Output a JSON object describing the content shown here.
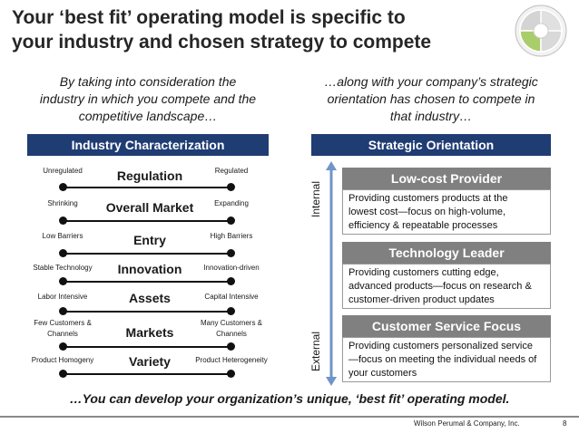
{
  "title": {
    "line1": "Your ‘best fit’ operating model is specific to",
    "line2": "your industry and chosen strategy to compete"
  },
  "intro_left": {
    "line1": "By taking into consideration the",
    "line2": "industry in which you compete and the",
    "line3": "competitive landscape…"
  },
  "intro_right": {
    "line1": "…along with your company’s strategic",
    "line2": "orientation has chosen to compete in",
    "line3": "that industry…"
  },
  "industry": {
    "header": "Industry Characterization",
    "rows": [
      {
        "name": "Regulation",
        "left": [
          "Unregulated"
        ],
        "right": [
          "Regulated"
        ]
      },
      {
        "name": "Overall Market",
        "left": [
          "Shrinking"
        ],
        "right": [
          "Expanding"
        ]
      },
      {
        "name": "Entry",
        "left": [
          "Low Barriers"
        ],
        "right": [
          "High Barriers"
        ]
      },
      {
        "name": "Innovation",
        "left": [
          "Stable Technology"
        ],
        "right": [
          "Innovation-driven"
        ]
      },
      {
        "name": "Assets",
        "left": [
          "Labor Intensive"
        ],
        "right": [
          "Capital Intensive"
        ]
      },
      {
        "name": "Markets",
        "left": [
          "Few Customers &",
          "Channels"
        ],
        "right": [
          "Many Customers &",
          "Channels"
        ]
      },
      {
        "name": "Variety",
        "left": [
          "Product Homogeny"
        ],
        "right": [
          "Product Heterogeneity"
        ]
      }
    ]
  },
  "strategic": {
    "header": "Strategic Orientation",
    "axis_top": "Internal",
    "axis_bottom": "External",
    "items": [
      {
        "title": "Low-cost Provider",
        "lines": [
          "Providing customers products at the",
          "lowest cost—focus on high-volume,",
          "efficiency & repeatable processes"
        ]
      },
      {
        "title": "Technology Leader",
        "lines": [
          "Providing customers cutting edge,",
          "advanced products—focus on research &",
          "customer-driven product updates"
        ]
      },
      {
        "title": "Customer Service Focus",
        "lines": [
          "Providing customers personalized service",
          "—focus on meeting the individual needs of",
          "your customers"
        ]
      }
    ]
  },
  "conclusion": "…You can develop your organization’s unique, ‘best fit’ operating model.",
  "footer": {
    "company": "Wilson Perumal & Company, Inc.",
    "page": "8"
  },
  "colors": {
    "header_blue": "#1f3c73",
    "header_gray": "#808080",
    "arrow_blue": "#6f95c9",
    "logo_green": "#a9cd6b"
  }
}
